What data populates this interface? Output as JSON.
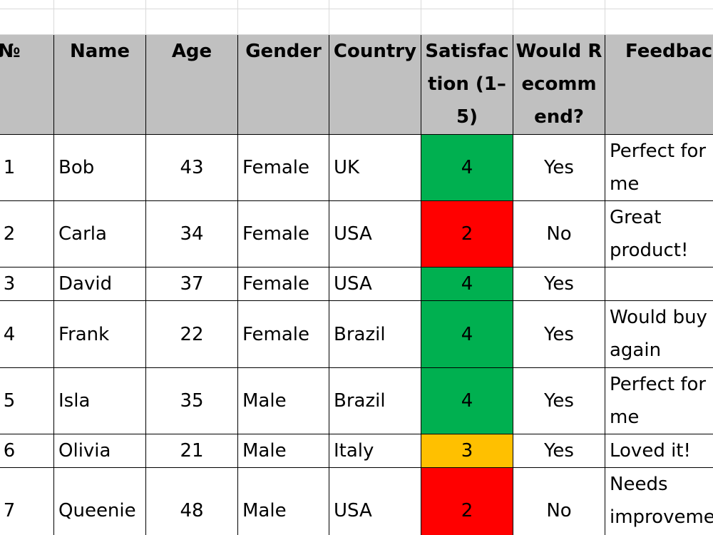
{
  "table": {
    "columns": [
      "№",
      "Name",
      "Age",
      "Gender",
      "Country",
      "Satisfaction (1–5)",
      "Would Recommend?",
      "Feedback"
    ],
    "rows": [
      [
        1,
        "Bob",
        43,
        "Female",
        "UK",
        4,
        "Yes",
        "Perfect for me"
      ],
      [
        2,
        "Carla",
        34,
        "Female",
        "USA",
        2,
        "No",
        "Great product!"
      ],
      [
        3,
        "David",
        37,
        "Female",
        "USA",
        4,
        "Yes",
        null
      ],
      [
        4,
        "Frank",
        22,
        "Female",
        "Brazil",
        4,
        "Yes",
        "Would buy again"
      ],
      [
        5,
        "Isla",
        35,
        "Male",
        "Brazil",
        4,
        "Yes",
        "Perfect for me"
      ],
      [
        6,
        "Olivia",
        21,
        "Male",
        "Italy",
        3,
        "Yes",
        "Loved it!"
      ],
      [
        7,
        "Queenie",
        48,
        "Male",
        "USA",
        2,
        "No",
        "Needs improvement"
      ]
    ]
  },
  "satisfaction_colors": {
    "2": "#ff0000",
    "3": "#ffc000",
    "4": "#00b050"
  }
}
